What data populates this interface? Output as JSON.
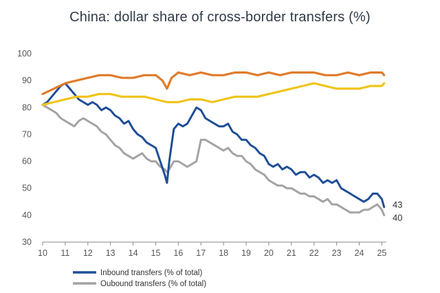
{
  "chart_data": {
    "type": "line",
    "title": "China: dollar share of cross-border transfers (%)",
    "xlabel": "",
    "ylabel": "",
    "xlim": [
      10,
      25.2
    ],
    "ylim": [
      30,
      100
    ],
    "x_ticks": [
      "10",
      "11",
      "12",
      "13",
      "14",
      "15",
      "16",
      "17",
      "18",
      "19",
      "20",
      "21",
      "22",
      "23",
      "24",
      "25"
    ],
    "y_ticks": [
      "30",
      "40",
      "50",
      "60",
      "70",
      "80",
      "90",
      "100"
    ],
    "legend_position": "bottom-left",
    "end_labels": [
      "43",
      "40"
    ],
    "series": [
      {
        "name": "Inbound transfers (% of total)",
        "color": "#1f4e96",
        "x": [
          10.0,
          10.2,
          10.4,
          10.6,
          10.8,
          11.0,
          11.2,
          11.4,
          11.6,
          11.8,
          12.0,
          12.2,
          12.4,
          12.6,
          12.8,
          13.0,
          13.2,
          13.4,
          13.6,
          13.8,
          14.0,
          14.2,
          14.4,
          14.6,
          14.8,
          15.0,
          15.2,
          15.4,
          15.5,
          15.6,
          15.8,
          16.0,
          16.2,
          16.4,
          16.6,
          16.8,
          17.0,
          17.2,
          17.4,
          17.6,
          17.8,
          18.0,
          18.2,
          18.4,
          18.6,
          18.8,
          19.0,
          19.2,
          19.4,
          19.6,
          19.8,
          20.0,
          20.2,
          20.4,
          20.6,
          20.8,
          21.0,
          21.2,
          21.4,
          21.6,
          21.8,
          22.0,
          22.2,
          22.4,
          22.6,
          22.8,
          23.0,
          23.2,
          23.4,
          23.6,
          23.8,
          24.0,
          24.2,
          24.4,
          24.6,
          24.8,
          25.0,
          25.1
        ],
        "values": [
          81,
          82,
          84,
          86,
          88,
          89,
          87,
          85,
          83,
          82,
          81,
          82,
          81,
          79,
          80,
          79,
          77,
          76,
          74,
          75,
          72,
          70,
          69,
          67,
          66,
          65,
          60,
          55,
          52,
          60,
          72,
          74,
          73,
          74,
          77,
          80,
          79,
          76,
          75,
          74,
          73,
          73,
          74,
          71,
          70,
          68,
          68,
          66,
          65,
          63,
          62,
          59,
          58,
          59,
          57,
          58,
          57,
          55,
          56,
          56,
          54,
          55,
          54,
          52,
          53,
          52,
          53,
          50,
          49,
          48,
          47,
          46,
          45,
          46,
          48,
          48,
          46,
          43
        ]
      },
      {
        "name": "Oubound transfers (% of total)",
        "color": "#a3a3a3",
        "x": [
          10.0,
          10.2,
          10.4,
          10.6,
          10.8,
          11.0,
          11.2,
          11.4,
          11.6,
          11.8,
          12.0,
          12.2,
          12.4,
          12.6,
          12.8,
          13.0,
          13.2,
          13.4,
          13.6,
          13.8,
          14.0,
          14.2,
          14.4,
          14.6,
          14.8,
          15.0,
          15.2,
          15.4,
          15.5,
          15.6,
          15.8,
          16.0,
          16.2,
          16.4,
          16.6,
          16.8,
          17.0,
          17.2,
          17.4,
          17.6,
          17.8,
          18.0,
          18.2,
          18.4,
          18.6,
          18.8,
          19.0,
          19.2,
          19.4,
          19.6,
          19.8,
          20.0,
          20.2,
          20.4,
          20.6,
          20.8,
          21.0,
          21.2,
          21.4,
          21.6,
          21.8,
          22.0,
          22.2,
          22.4,
          22.6,
          22.8,
          23.0,
          23.2,
          23.4,
          23.6,
          23.8,
          24.0,
          24.2,
          24.4,
          24.6,
          24.8,
          25.0,
          25.1
        ],
        "values": [
          81,
          80,
          79,
          78,
          76,
          75,
          74,
          73,
          75,
          76,
          75,
          74,
          73,
          71,
          70,
          68,
          66,
          65,
          63,
          62,
          61,
          62,
          63,
          61,
          60,
          60,
          58,
          57,
          56,
          57,
          60,
          60,
          59,
          58,
          59,
          60,
          68,
          68,
          67,
          66,
          65,
          64,
          65,
          63,
          62,
          62,
          60,
          59,
          57,
          56,
          55,
          53,
          52,
          51,
          51,
          50,
          50,
          49,
          48,
          48,
          47,
          47,
          46,
          45,
          46,
          44,
          44,
          43,
          42,
          41,
          41,
          41,
          42,
          42,
          43,
          44,
          42,
          40
        ]
      },
      {
        "name": "",
        "color": "#e07b2a",
        "x": [
          10.0,
          10.5,
          11.0,
          11.5,
          12.0,
          12.5,
          13.0,
          13.5,
          14.0,
          14.5,
          15.0,
          15.3,
          15.5,
          15.7,
          16.0,
          16.5,
          17.0,
          17.5,
          18.0,
          18.5,
          19.0,
          19.5,
          20.0,
          20.5,
          21.0,
          21.5,
          22.0,
          22.5,
          23.0,
          23.5,
          24.0,
          24.5,
          25.0,
          25.1
        ],
        "values": [
          85,
          87,
          89,
          90,
          91,
          92,
          92,
          91,
          91,
          92,
          92,
          90,
          87,
          91,
          93,
          92,
          93,
          92,
          92,
          93,
          93,
          92,
          93,
          92,
          93,
          93,
          93,
          92,
          92,
          93,
          92,
          93,
          93,
          92
        ]
      },
      {
        "name": "",
        "color": "#f0c419",
        "x": [
          10.0,
          10.5,
          11.0,
          11.5,
          12.0,
          12.5,
          13.0,
          13.5,
          14.0,
          14.5,
          15.0,
          15.5,
          16.0,
          16.5,
          17.0,
          17.5,
          18.0,
          18.5,
          19.0,
          19.5,
          20.0,
          20.5,
          21.0,
          21.5,
          22.0,
          22.5,
          23.0,
          23.5,
          24.0,
          24.5,
          25.0,
          25.1
        ],
        "values": [
          81,
          82,
          83,
          84,
          84,
          85,
          85,
          84,
          84,
          84,
          83,
          82,
          82,
          83,
          83,
          82,
          83,
          84,
          84,
          84,
          85,
          86,
          87,
          88,
          89,
          88,
          87,
          87,
          87,
          88,
          88,
          89
        ]
      }
    ]
  }
}
